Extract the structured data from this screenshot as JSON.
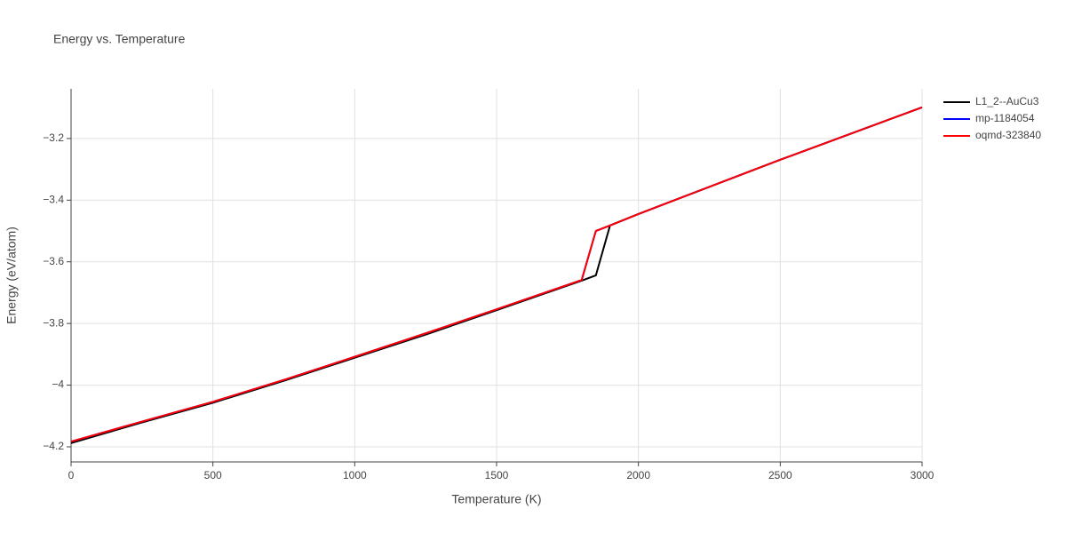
{
  "chart_data": {
    "type": "line",
    "title": "Energy vs. Temperature",
    "x_label": "Temperature (K)",
    "y_label": "Energy (eV/atom)",
    "x": [
      0,
      250,
      500,
      750,
      1000,
      1250,
      1500,
      1800,
      1850,
      1900,
      2000,
      2500,
      3000
    ],
    "series": [
      {
        "name": "L1_2--AuCu3",
        "color": "#000000",
        "values": [
          -4.188,
          -4.121,
          -4.057,
          -3.986,
          -3.911,
          -3.836,
          -3.757,
          -3.661,
          -3.644,
          -3.482,
          -3.445,
          -3.269,
          -3.099
        ]
      },
      {
        "name": "mp-1184054",
        "color": "#0000ff",
        "values": [
          -4.183,
          -4.118,
          -4.054,
          -3.983,
          -3.908,
          -3.832,
          -3.754,
          -3.659,
          -3.5,
          -3.482,
          -3.445,
          -3.269,
          -3.099
        ]
      },
      {
        "name": "oqmd-323840",
        "color": "#ff0000",
        "values": [
          -4.183,
          -4.118,
          -4.054,
          -3.983,
          -3.908,
          -3.832,
          -3.754,
          -3.659,
          -3.5,
          -3.482,
          -3.445,
          -3.269,
          -3.099
        ]
      }
    ],
    "xlim": [
      0,
      3000
    ],
    "xticks": [
      0,
      500,
      1000,
      1500,
      2000,
      2500,
      3000
    ],
    "ylim": [
      -4.249,
      -3.039
    ],
    "yticks": [
      {
        "value": -4.2,
        "label": "−4.2"
      },
      {
        "value": -4,
        "label": "−4"
      },
      {
        "value": -3.8,
        "label": "−3.8"
      },
      {
        "value": -3.6,
        "label": "−3.6"
      },
      {
        "value": -3.4,
        "label": "−3.4"
      },
      {
        "value": -3.2,
        "label": "−3.2"
      }
    ],
    "grid": true,
    "legend": "right"
  }
}
